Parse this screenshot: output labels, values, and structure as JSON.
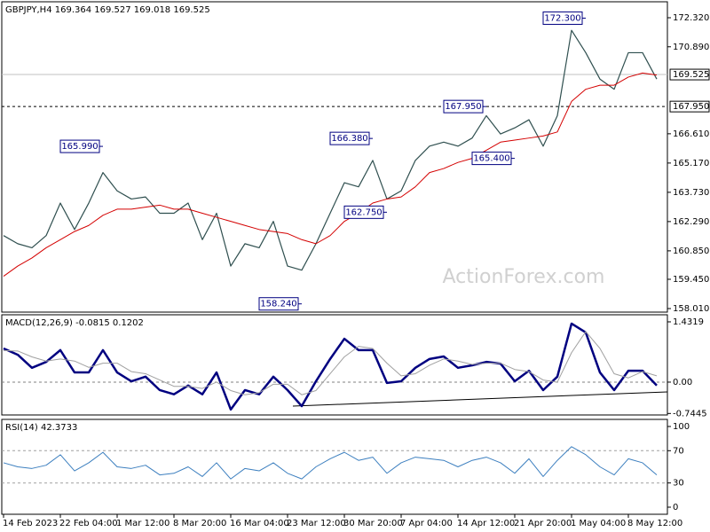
{
  "watermark": "ActionForex.com",
  "chart_data": [
    {
      "type": "line",
      "title": "GBPJPY,H4 169.364 169.527 169.018 169.525",
      "ylim": [
        157.835,
        173.105
      ],
      "yticks": [
        {
          "value": 172.32,
          "label": "172.320"
        },
        {
          "value": 170.89,
          "label": "170.890"
        },
        {
          "value": 166.61,
          "label": "166.610"
        },
        {
          "value": 165.17,
          "label": "165.170"
        },
        {
          "value": 163.73,
          "label": "163.730"
        },
        {
          "value": 162.29,
          "label": "162.290"
        },
        {
          "value": 160.85,
          "label": "160.850"
        },
        {
          "value": 159.45,
          "label": "159.450"
        },
        {
          "value": 158.01,
          "label": "158.010"
        }
      ],
      "hlines": [
        {
          "value": 169.525,
          "label": "169.525",
          "style": "solid",
          "color": "#c0c0c0"
        },
        {
          "value": 167.95,
          "label": "167.950",
          "style": "dashed",
          "color": "#000000"
        }
      ],
      "series": [
        {
          "color": "#2f4f4f",
          "line_width": 1.2,
          "values": [
            161.6,
            161.2,
            161.0,
            161.6,
            163.2,
            161.9,
            163.2,
            164.7,
            163.8,
            163.4,
            163.5,
            162.7,
            162.7,
            163.2,
            161.4,
            162.7,
            160.1,
            161.2,
            161.0,
            162.3,
            160.1,
            159.9,
            161.2,
            162.7,
            164.2,
            164.0,
            165.3,
            163.4,
            163.8,
            165.3,
            166.0,
            166.2,
            166.0,
            166.4,
            167.5,
            166.6,
            166.9,
            167.3,
            166.0,
            167.5,
            171.7,
            170.6,
            169.3,
            168.8,
            170.6,
            170.6,
            169.3
          ]
        },
        {
          "color": "#d40000",
          "line_width": 1,
          "values": [
            159.6,
            160.1,
            160.5,
            161.0,
            161.4,
            161.8,
            162.1,
            162.6,
            162.9,
            162.9,
            163.0,
            163.1,
            162.9,
            162.9,
            162.7,
            162.5,
            162.3,
            162.1,
            161.9,
            161.8,
            161.7,
            161.4,
            161.2,
            161.6,
            162.3,
            162.7,
            163.2,
            163.4,
            163.5,
            164.0,
            164.7,
            164.9,
            165.2,
            165.4,
            165.8,
            166.2,
            166.3,
            166.4,
            166.5,
            166.7,
            168.2,
            168.8,
            169.0,
            169.0,
            169.4,
            169.6,
            169.5
          ]
        }
      ],
      "annotations": [
        {
          "text": "165.990",
          "x": 7,
          "y": 165.99
        },
        {
          "text": "166.380",
          "x": 26,
          "y": 166.38
        },
        {
          "text": "162.750",
          "x": 27,
          "y": 162.75
        },
        {
          "text": "158.240",
          "x": 21,
          "y": 158.24
        },
        {
          "text": "167.950",
          "x": 34,
          "y": 167.95
        },
        {
          "text": "165.400",
          "x": 36,
          "y": 165.4
        },
        {
          "text": "172.300",
          "x": 41,
          "y": 172.3
        }
      ]
    },
    {
      "type": "line",
      "title": "MACD(12,26,9) -0.0815 0.1202",
      "ylim": [
        -0.78,
        1.6
      ],
      "yticks": [
        1.4319,
        {
          "value": 0,
          "label": "0.00"
        },
        -0.7445
      ],
      "hlines": [
        {
          "value": 0,
          "style": "dashed",
          "color": "#808080"
        }
      ],
      "series": [
        {
          "color": "#000080",
          "line_width": 2.5,
          "values": [
            0.8,
            0.65,
            0.34,
            0.48,
            0.76,
            0.23,
            0.23,
            0.76,
            0.23,
            0.02,
            0.13,
            -0.19,
            -0.29,
            -0.08,
            -0.29,
            0.23,
            -0.65,
            -0.19,
            -0.29,
            0.13,
            -0.19,
            -0.57,
            0.02,
            0.55,
            1.03,
            0.76,
            0.76,
            -0.02,
            0.02,
            0.34,
            0.55,
            0.61,
            0.34,
            0.4,
            0.48,
            0.44,
            0.02,
            0.27,
            -0.19,
            0.13,
            1.39,
            1.18,
            0.23,
            -0.19,
            0.27,
            0.27,
            -0.08
          ]
        },
        {
          "color": "#a0a0a0",
          "line_width": 1,
          "values": [
            0.75,
            0.74,
            0.6,
            0.5,
            0.55,
            0.5,
            0.35,
            0.45,
            0.45,
            0.25,
            0.2,
            0.05,
            -0.1,
            -0.1,
            -0.15,
            0.0,
            -0.2,
            -0.3,
            -0.25,
            -0.05,
            -0.05,
            -0.3,
            -0.2,
            0.2,
            0.6,
            0.85,
            0.8,
            0.45,
            0.15,
            0.2,
            0.4,
            0.55,
            0.5,
            0.42,
            0.45,
            0.45,
            0.3,
            0.25,
            0.05,
            0.0,
            0.7,
            1.2,
            0.8,
            0.2,
            0.1,
            0.25,
            0.15
          ]
        }
      ]
    },
    {
      "type": "line",
      "title": "RSI(14) 42.3733",
      "ylim": [
        -8.8,
        108.8
      ],
      "yticks": [
        100,
        70,
        30,
        0
      ],
      "hlines": [
        {
          "value": 70,
          "style": "dashed",
          "color": "#a0a0a0"
        },
        {
          "value": 30,
          "style": "dashed",
          "color": "#a0a0a0"
        }
      ],
      "categories": [
        "14 Feb 2023",
        null,
        null,
        null,
        "22 Feb 04:00",
        null,
        null,
        null,
        "1 Mar 12:00",
        null,
        null,
        null,
        "8 Mar 20:00",
        null,
        null,
        null,
        "16 Mar 04:00",
        null,
        null,
        null,
        "23 Mar 12:00",
        null,
        null,
        null,
        "30 Mar 20:00",
        null,
        null,
        null,
        "7 Apr 04:00",
        null,
        null,
        null,
        "14 Apr 12:00",
        null,
        null,
        null,
        "21 Apr 20:00",
        null,
        null,
        null,
        "1 May 04:00",
        null,
        null,
        null,
        "8 May 12:00",
        null,
        null
      ],
      "series": [
        {
          "color": "#3c7fbf",
          "line_width": 1,
          "values": [
            55,
            50,
            48,
            52,
            65,
            45,
            55,
            68,
            50,
            48,
            52,
            40,
            42,
            50,
            38,
            55,
            35,
            48,
            45,
            55,
            42,
            35,
            50,
            60,
            68,
            58,
            62,
            42,
            55,
            62,
            60,
            58,
            50,
            58,
            62,
            55,
            42,
            60,
            38,
            58,
            75,
            65,
            50,
            40,
            60,
            55,
            40
          ]
        }
      ]
    }
  ]
}
